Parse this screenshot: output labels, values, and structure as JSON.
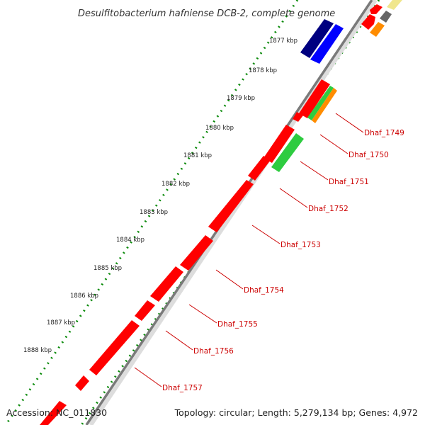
{
  "title": "Desulfitobacterium hafniense DCB-2, complete genome",
  "footer": {
    "accession": "Accession: NC_011830",
    "topology": "Topology: circular; Length: 5,279,134 bp; Genes: 4,972"
  },
  "ruler": {
    "labels": [
      "1877 kbp",
      "1878 kbp",
      "1879 kbp",
      "1880 kbp",
      "1881 kbp",
      "1882 kbp",
      "1883 kbp",
      "1884 kbp",
      "1885 kbp",
      "1886 kbp",
      "1887 kbp",
      "1888 kbp"
    ]
  },
  "gene_labels": [
    "Dhaf_1749",
    "Dhaf_1750",
    "Dhaf_1751",
    "Dhaf_1752",
    "Dhaf_1753",
    "Dhaf_1754",
    "Dhaf_1755",
    "Dhaf_1756",
    "Dhaf_1757"
  ],
  "colors": {
    "backbone": "#7a7a7a",
    "ruler_dots": "#0a8a0a",
    "gene_red": "#ff0000",
    "gene_green": "#2ecc40",
    "gene_orange": "#ff8c00",
    "gene_navy": "#000080",
    "gene_blue": "#0000ff",
    "gene_grey": "#666666",
    "gene_cream": "#f0e68c",
    "label_red": "#cc0000"
  }
}
